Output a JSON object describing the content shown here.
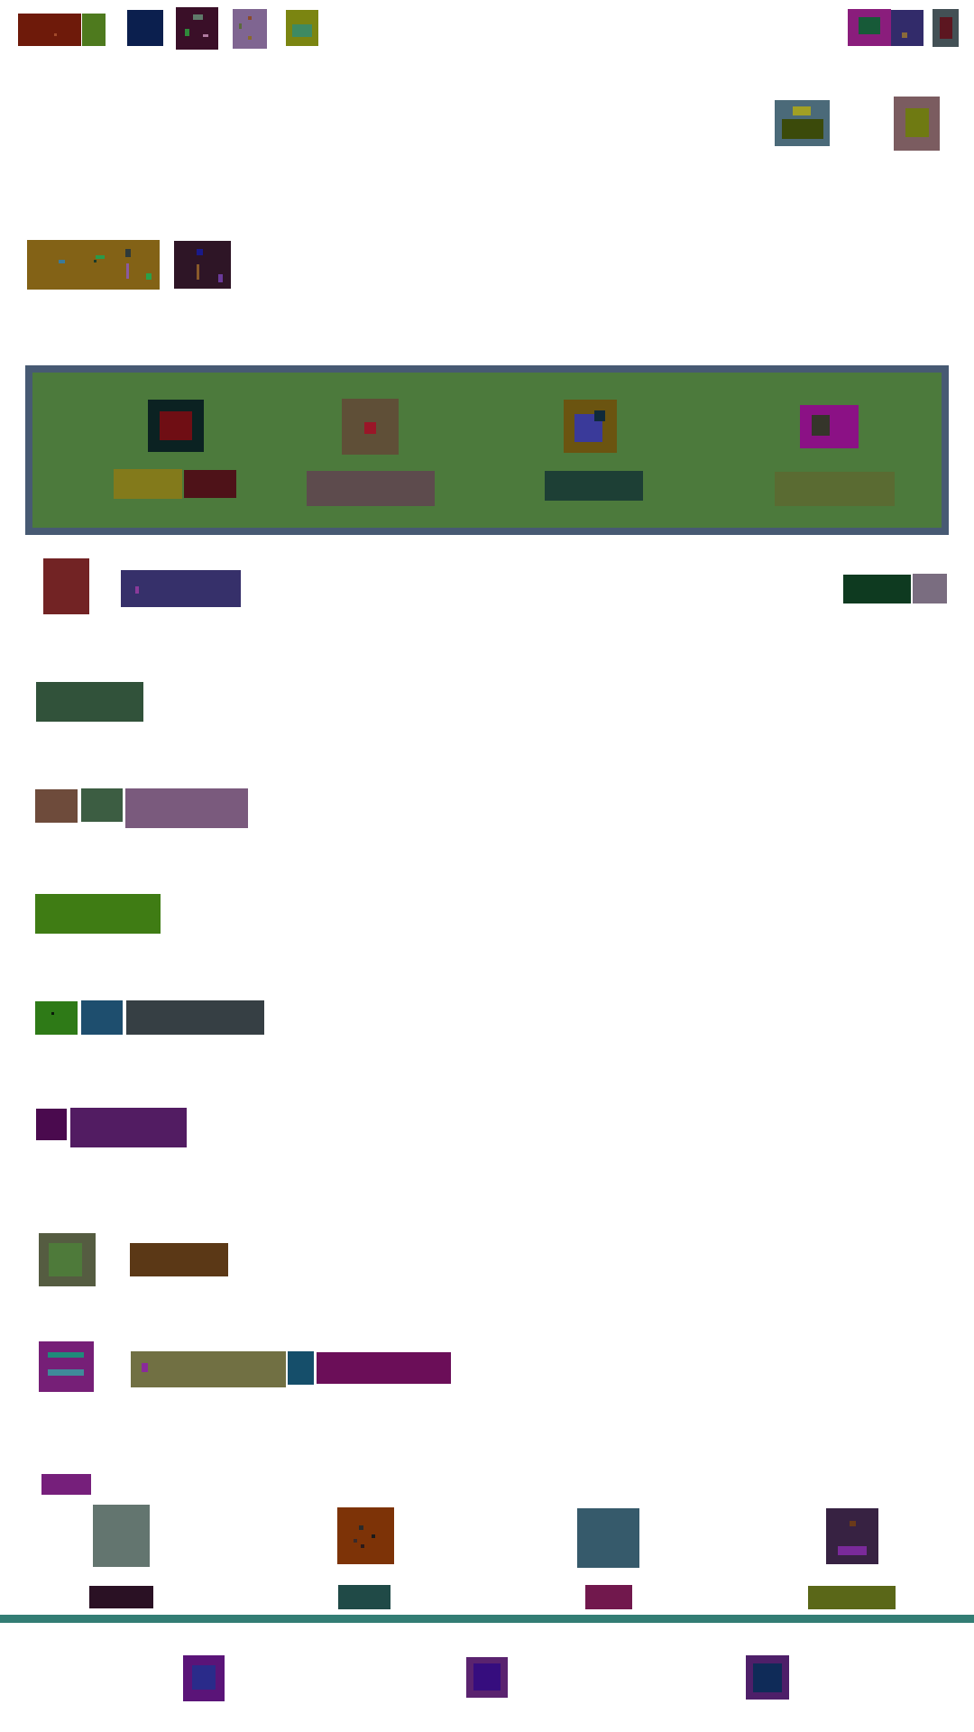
{
  "colors": {
    "background": "#ffffff",
    "tabs_border": "#475a73",
    "tabs_fill": "#4c7a3c",
    "bottom_separator": "#337d74"
  },
  "header": {
    "logo": {
      "icon": "logo-icon",
      "colors": [
        "#6e1a0a",
        "#4e7a1e"
      ]
    },
    "toolbar": [
      {
        "icon": "grid-icon",
        "color": "#0b1f4e"
      },
      {
        "icon": "image-icon",
        "color": "#3a0f28"
      },
      {
        "icon": "tag-icon",
        "color": "#7f6591"
      },
      {
        "icon": "folder-icon",
        "color": "#7b8511"
      }
    ],
    "account": [
      {
        "icon": "camera-icon",
        "color": "#8a1d7c"
      },
      {
        "icon": "bell-icon",
        "color": "#322b6a"
      },
      {
        "icon": "menu-icon",
        "color": "#435055"
      }
    ]
  },
  "quick_actions": [
    {
      "icon": "photo-icon",
      "color": "#4b6a79"
    },
    {
      "icon": "gallery-icon",
      "color": "#7b5c60"
    }
  ],
  "banner": {
    "colors": [
      "#836216",
      "#2e1526"
    ]
  },
  "tabs": [
    {
      "icon": "record-icon",
      "color": "#0b2222",
      "label_color": "#837a1b"
    },
    {
      "icon": "stop-icon",
      "color": "#5f4f37",
      "label_color": "#5d4b4d"
    },
    {
      "icon": "layers-icon",
      "color": "#6b5410",
      "label_color": "#1d3f35"
    },
    {
      "icon": "square-icon",
      "color": "#8b1185",
      "label_color": "#5a6b32"
    }
  ],
  "profile": {
    "avatar_color": "#722324",
    "name_color": "#36306a",
    "primary_button_color": "#0e3a20",
    "secondary_button_color": "#7a6d80"
  },
  "settings_rows": [
    {
      "icon": "list-icon",
      "colors": [
        "#31523a"
      ]
    },
    {
      "icon": "sliders-icon",
      "colors": [
        "#6e4b3b",
        "#3c5d42",
        "#7a5a7d"
      ]
    },
    {
      "icon": "check-icon",
      "colors": [
        "#3f7c14"
      ]
    },
    {
      "icon": "globe-icon",
      "colors": [
        "#2e7a17",
        "#1e4e6e",
        "#363f44"
      ]
    },
    {
      "icon": "lock-icon",
      "colors": [
        "#4a0a4e",
        "#521c62"
      ]
    },
    {
      "icon": "leaf-icon",
      "colors": [
        "#555c41",
        "#5b3816"
      ]
    },
    {
      "icon": "chat-icon",
      "colors": [
        "#761f77",
        "#717043",
        "#154e6a",
        "#6b0e58"
      ]
    }
  ],
  "section_label_color": "#761f7b",
  "cards": [
    {
      "icon": "file-icon",
      "color": "#63756f",
      "label_color": "#2a1124"
    },
    {
      "icon": "scatter-icon",
      "color": "#7d3307",
      "label_color": "#204a47"
    },
    {
      "icon": "box-icon",
      "color": "#365a6b",
      "label_color": "#71184d"
    },
    {
      "icon": "inbox-icon",
      "color": "#372242",
      "label_color": "#5a6718"
    }
  ],
  "bottom_nav": [
    {
      "icon": "home-icon",
      "color": "#5a1478",
      "inner": "#2a2b8a"
    },
    {
      "icon": "search-icon",
      "color": "#5a236f",
      "inner": "#360d7e"
    },
    {
      "icon": "profile-icon",
      "color": "#4e1f69",
      "inner": "#0f2b58"
    }
  ]
}
